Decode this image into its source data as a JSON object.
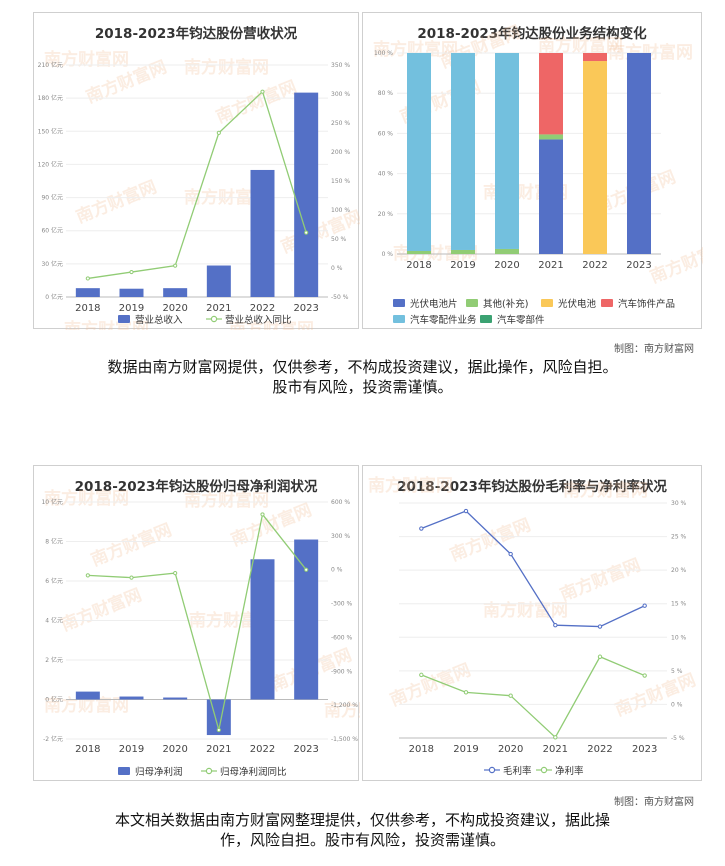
{
  "colors": {
    "blue": "#5470c6",
    "green": "#91cc75",
    "yellow": "#fac858",
    "red": "#ee6666",
    "cyan": "#73c0de",
    "darkgreen": "#3ba272",
    "watermark": "#f2c09b"
  },
  "watermark": "南方财富网",
  "panels": {
    "revenue": {
      "title": "2018-2023年钧达股份营收状况"
    },
    "structure": {
      "title": "2018-2023年钧达股份业务结构变化"
    },
    "profit": {
      "title": "2018-2023年钧达股份归母净利润状况"
    },
    "margin": {
      "title": "2018-2023年钧达股份毛利率与净利率状况"
    }
  },
  "credit1": "制图：南方财富网",
  "credit2": "制图：南方财富网",
  "disclaimer1": {
    "line1": "数据由南方财富网提供，仅供参考，不构成投资建议，据此操作，风险自担。",
    "line2": "股市有风险，投资需谨慎。"
  },
  "disclaimer2": {
    "line1": "本文相关数据由南方财富网整理提供，仅供参考，不构成投资建议，据此操",
    "line2": "作，风险自担。股市有风险，投资需谨慎。"
  },
  "chart_data": [
    {
      "id": "revenue",
      "type": "bar",
      "title": "2018-2023年钧达股份营收状况",
      "categories": [
        "2018",
        "2019",
        "2020",
        "2021",
        "2022",
        "2023"
      ],
      "yaxis_left": {
        "ticks": [
          "0 亿元",
          "30 亿元",
          "60 亿元",
          "90 亿元",
          "120 亿元",
          "150 亿元",
          "180 亿元",
          "210 亿元"
        ],
        "ylim": [
          0,
          210
        ]
      },
      "yaxis_right": {
        "ticks": [
          "-50 %",
          "0 %",
          "50 %",
          "100 %",
          "150 %",
          "200 %",
          "250 %",
          "300 %",
          "350 %"
        ],
        "ylim": [
          -50,
          350
        ]
      },
      "series": [
        {
          "name": "营业总收入",
          "type": "bar",
          "axis": "left",
          "color": "#5470c6",
          "values": [
            8,
            7.5,
            8,
            28.5,
            115,
            185
          ]
        },
        {
          "name": "营业总收入同比",
          "type": "line",
          "axis": "right",
          "color": "#91cc75",
          "values": [
            -18,
            -7,
            4,
            233,
            304,
            61
          ]
        }
      ],
      "legend": "bottom"
    },
    {
      "id": "structure",
      "type": "bar",
      "stacked": true,
      "title": "2018-2023年钧达股份业务结构变化",
      "categories": [
        "2018",
        "2019",
        "2020",
        "2021",
        "2022",
        "2023"
      ],
      "yaxis": {
        "ticks": [
          "0 %",
          "20 %",
          "40 %",
          "60 %",
          "80 %",
          "100 %"
        ],
        "ylim": [
          0,
          100
        ]
      },
      "series": [
        {
          "name": "光伏电池片",
          "color": "#5470c6",
          "values": [
            0,
            0,
            0,
            57,
            0,
            100
          ]
        },
        {
          "name": "其他(补充)",
          "color": "#91cc75",
          "values": [
            1.5,
            2,
            2.5,
            2.5,
            0,
            0
          ]
        },
        {
          "name": "光伏电池",
          "color": "#fac858",
          "values": [
            0,
            0,
            0,
            0,
            96,
            0
          ]
        },
        {
          "name": "汽车饰件产品",
          "color": "#ee6666",
          "values": [
            0,
            0,
            0,
            40.5,
            4,
            0
          ]
        },
        {
          "name": "汽车零配件业务",
          "color": "#73c0de",
          "values": [
            98.5,
            98,
            97.5,
            0,
            0,
            0
          ]
        },
        {
          "name": "汽车零部件",
          "color": "#3ba272",
          "values": [
            0,
            0,
            0,
            0,
            0,
            0
          ]
        }
      ],
      "legend": "bottom"
    },
    {
      "id": "profit",
      "type": "bar",
      "title": "2018-2023年钧达股份归母净利润状况",
      "categories": [
        "2018",
        "2019",
        "2020",
        "2021",
        "2022",
        "2023"
      ],
      "yaxis_left": {
        "ticks": [
          "-2 亿元",
          "0 亿元",
          "2 亿元",
          "4 亿元",
          "6 亿元",
          "8 亿元",
          "10 亿元"
        ],
        "ylim": [
          -2,
          10
        ]
      },
      "yaxis_right": {
        "ticks": [
          "-1,500 %",
          "-1,200 %",
          "-900 %",
          "-600 %",
          "-300 %",
          "0 %",
          "300 %",
          "600 %"
        ],
        "ylim": [
          -1500,
          600
        ]
      },
      "series": [
        {
          "name": "归母净利润",
          "type": "bar",
          "axis": "left",
          "color": "#5470c6",
          "values": [
            0.4,
            0.15,
            0.1,
            -1.8,
            7.1,
            8.1
          ]
        },
        {
          "name": "归母净利润同比",
          "type": "line",
          "axis": "right",
          "color": "#91cc75",
          "values": [
            -50,
            -70,
            -30,
            -1420,
            490,
            0
          ]
        }
      ],
      "legend": "bottom"
    },
    {
      "id": "margin",
      "type": "line",
      "title": "2018-2023年钧达股份毛利率与净利率状况",
      "categories": [
        "2018",
        "2019",
        "2020",
        "2021",
        "2022",
        "2023"
      ],
      "yaxis_right": {
        "ticks": [
          "-5 %",
          "0 %",
          "5 %",
          "10 %",
          "15 %",
          "20 %",
          "25 %",
          "30 %"
        ],
        "ylim": [
          -5,
          30
        ]
      },
      "series": [
        {
          "name": "毛利率",
          "color": "#5470c6",
          "values": [
            26.2,
            28.8,
            22.4,
            11.8,
            11.6,
            14.7
          ]
        },
        {
          "name": "净利率",
          "color": "#91cc75",
          "values": [
            4.4,
            1.8,
            1.3,
            -4.9,
            7.1,
            4.3
          ]
        }
      ],
      "legend": "bottom"
    }
  ]
}
